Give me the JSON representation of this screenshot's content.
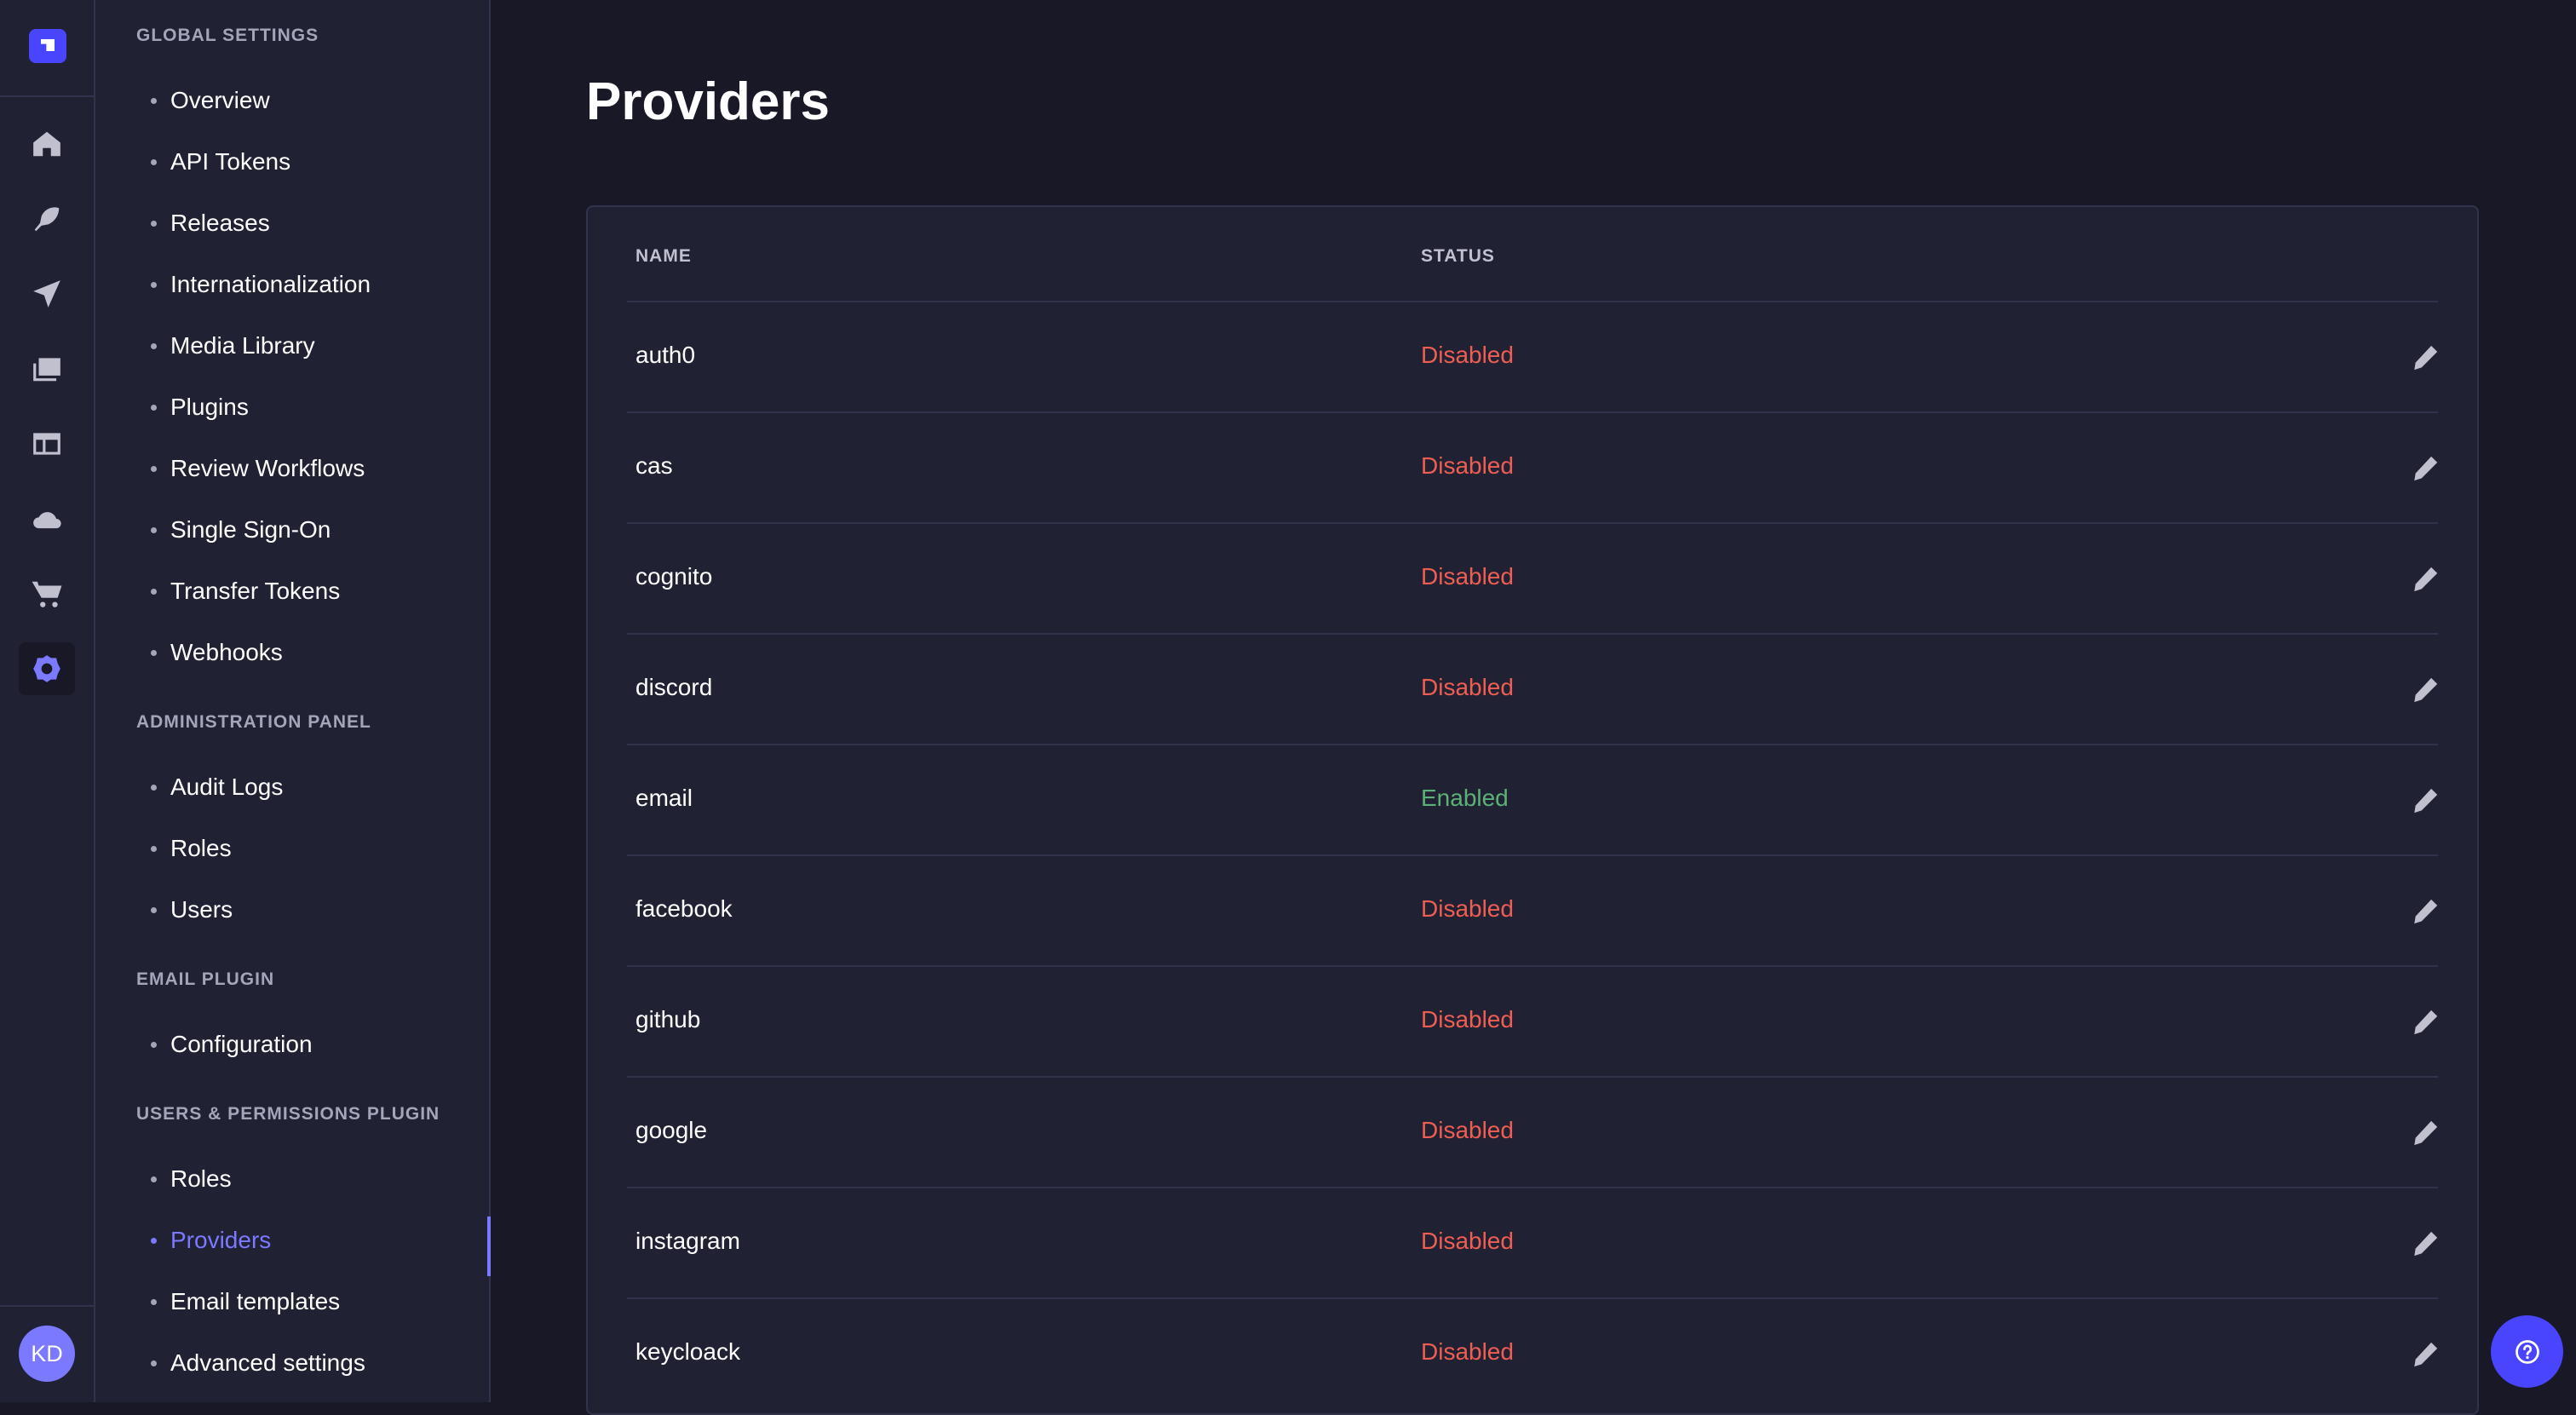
{
  "rail": {
    "icons": [
      "logo-icon",
      "home-icon",
      "feather-icon",
      "paper-plane-icon",
      "images-icon",
      "layout-icon",
      "cloud-icon",
      "cart-icon",
      "gear-icon"
    ],
    "avatar": "KD"
  },
  "nav": {
    "sections": [
      {
        "title": "GLOBAL SETTINGS",
        "items": [
          "Overview",
          "API Tokens",
          "Releases",
          "Internationalization",
          "Media Library",
          "Plugins",
          "Review Workflows",
          "Single Sign-On",
          "Transfer Tokens",
          "Webhooks"
        ]
      },
      {
        "title": "ADMINISTRATION PANEL",
        "items": [
          "Audit Logs",
          "Roles",
          "Users"
        ]
      },
      {
        "title": "EMAIL PLUGIN",
        "items": [
          "Configuration"
        ]
      },
      {
        "title": "USERS & PERMISSIONS PLUGIN",
        "items": [
          "Roles",
          "Providers",
          "Email templates",
          "Advanced settings"
        ]
      }
    ],
    "active": "Providers"
  },
  "page": {
    "title": "Providers"
  },
  "table": {
    "headers": {
      "name": "NAME",
      "status": "STATUS"
    },
    "rows": [
      {
        "name": "auth0",
        "status": "Disabled"
      },
      {
        "name": "cas",
        "status": "Disabled"
      },
      {
        "name": "cognito",
        "status": "Disabled"
      },
      {
        "name": "discord",
        "status": "Disabled"
      },
      {
        "name": "email",
        "status": "Enabled"
      },
      {
        "name": "facebook",
        "status": "Disabled"
      },
      {
        "name": "github",
        "status": "Disabled"
      },
      {
        "name": "google",
        "status": "Disabled"
      },
      {
        "name": "instagram",
        "status": "Disabled"
      },
      {
        "name": "keycloack",
        "status": "Disabled"
      }
    ]
  },
  "colors": {
    "enabled": "#5cb176",
    "disabled": "#ee5e52",
    "accent": "#7b79ff",
    "brand": "#4945ff"
  }
}
